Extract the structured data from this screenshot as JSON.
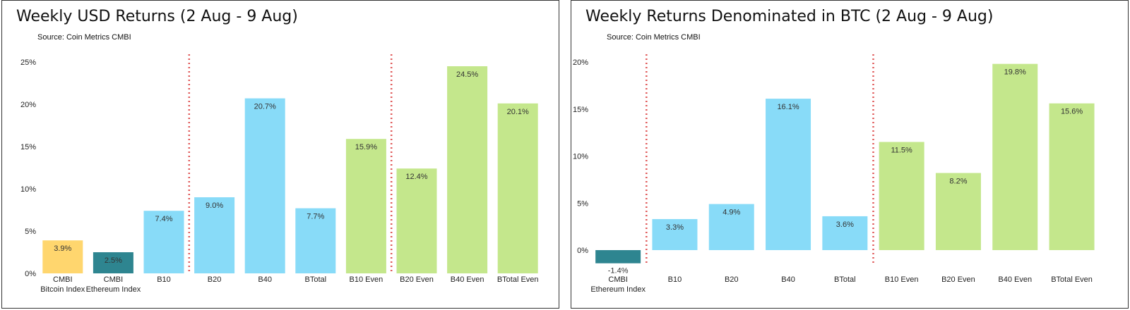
{
  "colors": {
    "bitcoin": "#ffd66e",
    "ethereum": "#2e8590",
    "b_cap": "#88dbf8",
    "b_even": "#c4e78c",
    "divider": "#e05a5a"
  },
  "chart_data": [
    {
      "type": "bar",
      "title": "Weekly USD Returns (2 Aug - 9 Aug)",
      "source": "Source: Coin Metrics CMBI",
      "ylim": [
        0,
        25
      ],
      "yticks": [
        "0%",
        "5%",
        "10%",
        "15%",
        "20%",
        "25%"
      ],
      "ytick_values": [
        0,
        5,
        10,
        15,
        20,
        25
      ],
      "grid": false,
      "dividers_after": [
        2,
        6
      ],
      "categories": [
        [
          "CMBI",
          "Bitcoin Index"
        ],
        [
          "CMBI",
          "Ethereum Index"
        ],
        [
          "B10"
        ],
        [
          "B20"
        ],
        [
          "B40"
        ],
        [
          "BTotal"
        ],
        [
          "B10 Even"
        ],
        [
          "B20 Even"
        ],
        [
          "B40 Even"
        ],
        [
          "BTotal Even"
        ]
      ],
      "values": [
        3.9,
        2.5,
        7.4,
        9.0,
        20.7,
        7.7,
        15.9,
        12.4,
        24.5,
        20.1
      ],
      "labels": [
        "3.9%",
        "2.5%",
        "7.4%",
        "9.0%",
        "20.7%",
        "7.7%",
        "15.9%",
        "12.4%",
        "24.5%",
        "20.1%"
      ],
      "color_keys": [
        "bitcoin",
        "ethereum",
        "b_cap",
        "b_cap",
        "b_cap",
        "b_cap",
        "b_even",
        "b_even",
        "b_even",
        "b_even"
      ]
    },
    {
      "type": "bar",
      "title": "Weekly Returns Denominated in BTC (2 Aug - 9 Aug)",
      "source": "Source: Coin Metrics CMBI",
      "ylim": [
        -1.5,
        20.5
      ],
      "yticks": [
        "0%",
        "5%",
        "10%",
        "15%",
        "20%"
      ],
      "ytick_values": [
        0,
        5,
        10,
        15,
        20
      ],
      "grid": false,
      "dividers_after": [
        0,
        4
      ],
      "categories": [
        [
          "CMBI",
          "Ethereum Index"
        ],
        [
          "B10"
        ],
        [
          "B20"
        ],
        [
          "B40"
        ],
        [
          "BTotal"
        ],
        [
          "B10 Even"
        ],
        [
          "B20 Even"
        ],
        [
          "B40 Even"
        ],
        [
          "BTotal Even"
        ]
      ],
      "values": [
        -1.4,
        3.3,
        4.9,
        16.1,
        3.6,
        11.5,
        8.2,
        19.8,
        15.6
      ],
      "labels": [
        "-1.4%",
        "3.3%",
        "4.9%",
        "16.1%",
        "3.6%",
        "11.5%",
        "8.2%",
        "19.8%",
        "15.6%"
      ],
      "color_keys": [
        "ethereum",
        "b_cap",
        "b_cap",
        "b_cap",
        "b_cap",
        "b_even",
        "b_even",
        "b_even",
        "b_even"
      ]
    }
  ]
}
